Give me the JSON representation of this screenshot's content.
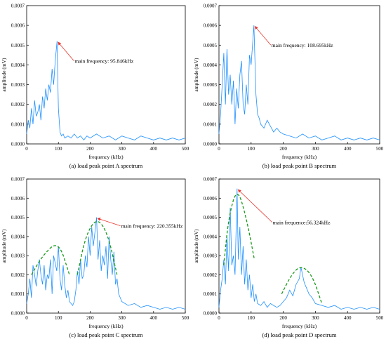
{
  "chart_data": [
    {
      "type": "line",
      "caption": "(a) load peak point A spectrum",
      "xlabel": "frequency (kHz)",
      "ylabel": "amplitude (mV)",
      "xlim": [
        0,
        500
      ],
      "ylim": [
        0,
        0.0007
      ],
      "xticks": [
        "0",
        "100",
        "200",
        "300",
        "400",
        "500"
      ],
      "yticks": [
        "0.0000",
        "0.0001",
        "0.0002",
        "0.0003",
        "0.0004",
        "0.0005",
        "0.0006",
        "0.0007"
      ],
      "series_color": "#1e90ff",
      "annotation": {
        "text": "main frequency: 95.846kHz",
        "x": 95.846,
        "y": 0.00052
      },
      "x": [
        0,
        5,
        10,
        15,
        20,
        25,
        30,
        35,
        40,
        45,
        50,
        55,
        60,
        65,
        70,
        75,
        80,
        85,
        90,
        95.846,
        100,
        105,
        110,
        115,
        120,
        130,
        140,
        150,
        160,
        170,
        180,
        190,
        200,
        220,
        240,
        260,
        280,
        300,
        320,
        340,
        360,
        380,
        400,
        420,
        440,
        460,
        480,
        500
      ],
      "y": [
        5e-05,
        0.00012,
        8e-05,
        0.00018,
        0.0001,
        0.00022,
        0.00014,
        0.00016,
        0.0002,
        0.00012,
        0.00024,
        0.00018,
        0.00028,
        0.00022,
        0.0003,
        0.00026,
        0.00038,
        0.0003,
        0.00042,
        0.00052,
        0.00018,
        6e-05,
        4e-05,
        5e-05,
        3e-05,
        4e-05,
        3e-05,
        5e-05,
        3e-05,
        4e-05,
        2e-05,
        4e-05,
        3e-05,
        5e-05,
        3e-05,
        4e-05,
        2e-05,
        4e-05,
        3e-05,
        2e-05,
        4e-05,
        3e-05,
        2e-05,
        3e-05,
        2e-05,
        3e-05,
        2e-05,
        3e-05
      ]
    },
    {
      "type": "line",
      "caption": "(b) load peak point B spectrum",
      "xlabel": "frequency (kHz)",
      "ylabel": "amplitude (mV)",
      "xlim": [
        0,
        500
      ],
      "ylim": [
        0,
        0.0007
      ],
      "xticks": [
        "0",
        "100",
        "200",
        "300",
        "400",
        "500"
      ],
      "yticks": [
        "0.0000",
        "0.0001",
        "0.0002",
        "0.0003",
        "0.0004",
        "0.0005",
        "0.0006",
        "0.0007"
      ],
      "series_color": "#1e90ff",
      "annotation": {
        "text": "main frequency: 108.695kHz",
        "x": 108.695,
        "y": 0.0006
      },
      "x": [
        0,
        5,
        10,
        15,
        20,
        25,
        30,
        35,
        40,
        45,
        50,
        55,
        60,
        65,
        70,
        75,
        80,
        85,
        90,
        95,
        100,
        108.695,
        115,
        120,
        125,
        130,
        140,
        150,
        160,
        170,
        180,
        190,
        200,
        220,
        240,
        260,
        280,
        300,
        320,
        340,
        360,
        380,
        400,
        420,
        440,
        460,
        480,
        500
      ],
      "y": [
        5e-05,
        0.00015,
        0.0003,
        0.00046,
        0.0002,
        0.00048,
        0.00025,
        0.00035,
        0.0002,
        0.00032,
        0.0001,
        0.00028,
        0.00018,
        0.00035,
        0.00042,
        0.0002,
        0.00015,
        0.0003,
        0.0002,
        0.00045,
        0.0004,
        0.0006,
        0.00025,
        0.00015,
        0.00013,
        0.0001,
        8e-05,
        0.00012,
        9e-05,
        6e-05,
        8e-05,
        6e-05,
        5e-05,
        4e-05,
        3e-05,
        5e-05,
        3e-05,
        4e-05,
        2e-05,
        3e-05,
        4e-05,
        2e-05,
        3e-05,
        2e-05,
        3e-05,
        2e-05,
        3e-05,
        2e-05
      ]
    },
    {
      "type": "line",
      "caption": "(c) load peak point C spectrum",
      "xlabel": "frequency (kHz)",
      "ylabel": "amplitude (mV)",
      "xlim": [
        0,
        500
      ],
      "ylim": [
        0,
        0.0007
      ],
      "xticks": [
        "0",
        "100",
        "200",
        "300",
        "400",
        "500"
      ],
      "yticks": [
        "0.0000",
        "0.0001",
        "0.0002",
        "0.0003",
        "0.0004",
        "0.0005",
        "0.0006",
        "0.0007"
      ],
      "series_color": "#1e90ff",
      "annotation": {
        "text": "main frequency: 220.355kHz",
        "x": 220.355,
        "y": 0.0005
      },
      "envelopes": [
        {
          "x": [
            15,
            50,
            100,
            135
          ],
          "y": [
            0.0002,
            0.0003,
            0.00038,
            0.0002
          ]
        },
        {
          "x": [
            160,
            185,
            220.355,
            255,
            285
          ],
          "y": [
            0.0002,
            0.0004,
            0.0005,
            0.00042,
            0.0002
          ]
        }
      ],
      "x": [
        0,
        5,
        10,
        15,
        20,
        25,
        30,
        35,
        40,
        45,
        50,
        55,
        60,
        65,
        70,
        75,
        80,
        85,
        90,
        95,
        100,
        105,
        110,
        115,
        120,
        125,
        130,
        135,
        140,
        145,
        150,
        155,
        160,
        165,
        170,
        175,
        180,
        185,
        190,
        195,
        200,
        205,
        210,
        215,
        220.355,
        225,
        230,
        235,
        240,
        245,
        250,
        255,
        260,
        265,
        270,
        275,
        280,
        285,
        290,
        300,
        320,
        340,
        360,
        380,
        400,
        420,
        440,
        460,
        480,
        500
      ],
      "y": [
        5e-05,
        0.0001,
        0.00018,
        8e-05,
        0.00025,
        0.0002,
        0.00014,
        0.00022,
        0.00028,
        0.0002,
        0.00015,
        0.00025,
        0.00012,
        0.0002,
        0.00018,
        0.00028,
        0.0001,
        0.0003,
        0.00026,
        0.00022,
        0.00035,
        0.00018,
        0.00012,
        0.00025,
        0.00015,
        8e-05,
        0.00012,
        6e-05,
        5e-05,
        4e-05,
        6e-05,
        0.00012,
        0.00022,
        0.00015,
        0.00028,
        0.00018,
        0.0002,
        0.0003,
        0.00024,
        0.0004,
        0.0003,
        0.00045,
        0.00035,
        0.00042,
        0.0005,
        0.00028,
        0.00038,
        0.00022,
        0.0003,
        0.00025,
        0.00035,
        0.00018,
        0.0004,
        0.00028,
        0.0002,
        0.00032,
        0.00015,
        0.00018,
        0.0001,
        6e-05,
        4e-05,
        5e-05,
        3e-05,
        4e-05,
        3e-05,
        2e-05,
        3e-05,
        2e-05,
        3e-05,
        2e-05
      ]
    },
    {
      "type": "line",
      "caption": "(d) load peak point D spectrum",
      "xlabel": "frequency (kHz)",
      "ylabel": "amplitude (mV)",
      "xlim": [
        0,
        500
      ],
      "ylim": [
        0,
        0.0007
      ],
      "xticks": [
        "0",
        "100",
        "200",
        "300",
        "400",
        "500"
      ],
      "yticks": [
        "0.0000",
        "0.0001",
        "0.0002",
        "0.0003",
        "0.0004",
        "0.0005",
        "0.0006",
        "0.0007"
      ],
      "series_color": "#1e90ff",
      "annotation": {
        "text": "main frequence:56.324kHz",
        "x": 56.324,
        "y": 0.00065
      },
      "envelopes": [
        {
          "x": [
            15,
            30,
            56.324,
            85,
            110
          ],
          "y": [
            0.00025,
            0.0005,
            0.00066,
            0.0005,
            0.00028
          ]
        },
        {
          "x": [
            195,
            225,
            255,
            290,
            320
          ],
          "y": [
            0.0001,
            0.0002,
            0.00025,
            0.0002,
            5e-05
          ]
        }
      ],
      "x": [
        0,
        5,
        10,
        15,
        20,
        25,
        30,
        35,
        40,
        45,
        50,
        56.324,
        60,
        65,
        70,
        75,
        80,
        85,
        90,
        95,
        100,
        105,
        110,
        115,
        120,
        130,
        140,
        150,
        160,
        170,
        180,
        190,
        200,
        210,
        220,
        230,
        240,
        250,
        255,
        260,
        265,
        270,
        280,
        290,
        300,
        320,
        340,
        360,
        380,
        400,
        420,
        440,
        460,
        480,
        500
      ],
      "y": [
        3e-05,
        0.00012,
        0.00018,
        0.00028,
        0.00015,
        0.0004,
        0.00022,
        0.00055,
        0.00025,
        0.0003,
        0.0002,
        0.00065,
        0.00028,
        0.00045,
        0.0002,
        0.00035,
        0.00015,
        0.00028,
        0.00012,
        0.0002,
        8e-05,
        0.00015,
        6e-05,
        0.0001,
        5e-05,
        4e-05,
        6e-05,
        3e-05,
        5e-05,
        4e-05,
        3e-05,
        4e-05,
        6e-05,
        8e-05,
        0.00012,
        9e-05,
        0.00015,
        0.00018,
        0.00024,
        0.0002,
        0.00016,
        0.00014,
        0.0001,
        8e-05,
        5e-05,
        4e-05,
        3e-05,
        4e-05,
        2e-05,
        3e-05,
        2e-05,
        3e-05,
        2e-05,
        3e-05,
        2e-05
      ]
    }
  ]
}
